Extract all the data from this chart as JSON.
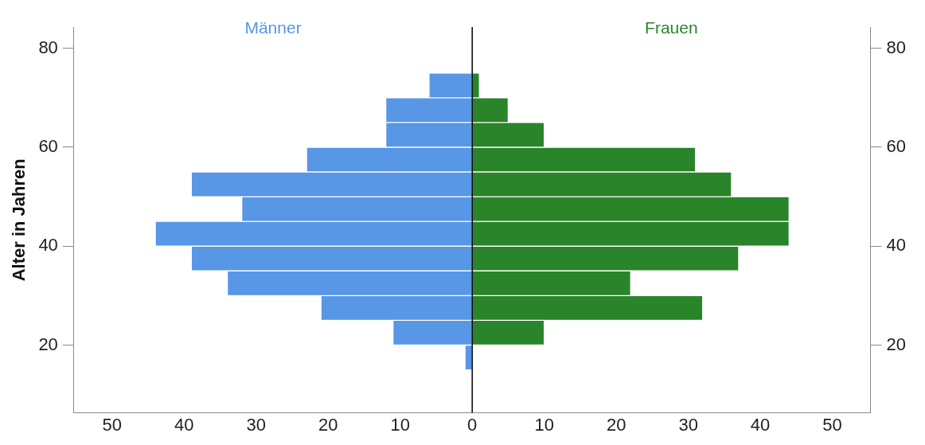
{
  "chart_data": {
    "type": "bar",
    "orientation": "horizontal",
    "stacked": true,
    "ylabel": "Alter in Jahren",
    "x": [
      17.5,
      22.5,
      27.5,
      32.5,
      37.5,
      42.5,
      47.5,
      52.5,
      57.5,
      62.5,
      67.5,
      72.5
    ],
    "series": [
      {
        "name": "Männer",
        "color": "#5896e6",
        "values": [
          -1,
          -11,
          -21,
          -34,
          -39,
          -44,
          -32,
          -39,
          -23,
          -12,
          -12,
          -6
        ]
      },
      {
        "name": "Frauen",
        "color": "#2a8429",
        "values": [
          0,
          10,
          32,
          22,
          37,
          44,
          44,
          36,
          31,
          10,
          5,
          1
        ]
      }
    ],
    "xlim": [
      -55.3,
      55.3
    ],
    "xticks": [
      {
        "value": -50,
        "label": "50"
      },
      {
        "value": -40,
        "label": "40"
      },
      {
        "value": -30,
        "label": "30"
      },
      {
        "value": -20,
        "label": "20"
      },
      {
        "value": -10,
        "label": "10"
      },
      0,
      10,
      20,
      30,
      40,
      50
    ],
    "ylim": [
      6.3,
      84.3
    ],
    "yticks": [
      20,
      40,
      60,
      80
    ],
    "y2lim": [
      6.3,
      84.3
    ],
    "y2ticks": [
      20,
      40,
      60,
      80
    ],
    "ref_lines": [
      {
        "axis": "x",
        "value": 0,
        "color": "#000000"
      }
    ],
    "grid": false,
    "legend": false
  }
}
